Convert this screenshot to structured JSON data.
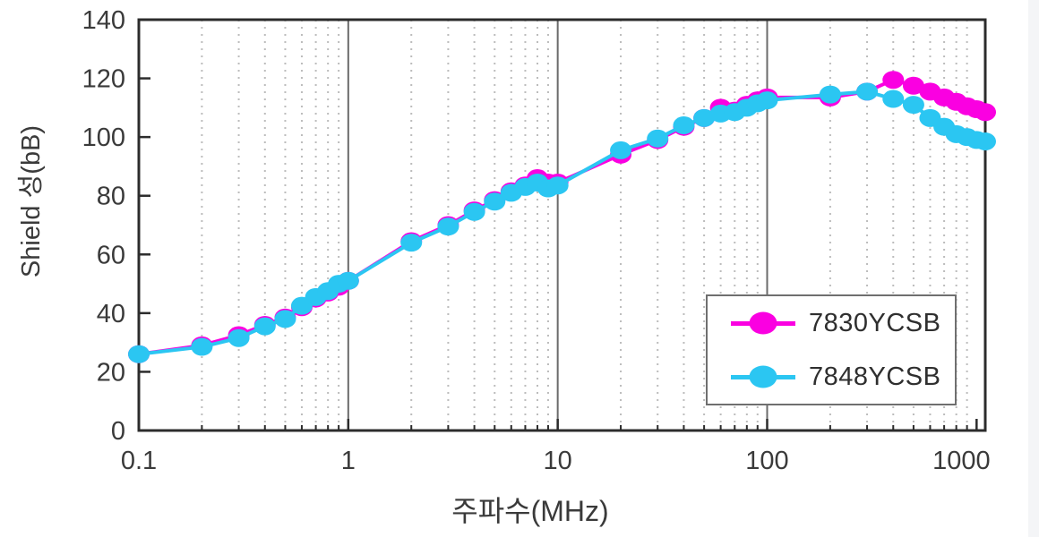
{
  "chart_data": {
    "type": "line",
    "title": "",
    "xlabel": "주파수(MHz)",
    "ylabel": "Shield 성(bB)",
    "x_scale": "log",
    "xlim": [
      0.1,
      1100
    ],
    "ylim": [
      0,
      140
    ],
    "x_ticks": [
      "0.1",
      "1",
      "10",
      "100",
      "1000"
    ],
    "x_tick_values": [
      0.1,
      1,
      10,
      100,
      1000
    ],
    "y_ticks": [
      0,
      20,
      40,
      60,
      80,
      100,
      120,
      140
    ],
    "grid": {
      "vertical_minor": "dotted",
      "vertical_major": "solid",
      "horizontal": "none"
    },
    "legend": {
      "position": "inside-bottom-right",
      "items": [
        "7830YCSB",
        "7848YCSB"
      ]
    },
    "x": [
      0.1,
      0.2,
      0.3,
      0.4,
      0.5,
      0.6,
      0.7,
      0.8,
      0.9,
      1,
      2,
      3,
      4,
      5,
      6,
      7,
      8,
      9,
      10,
      20,
      30,
      40,
      50,
      60,
      70,
      80,
      90,
      100,
      200,
      300,
      400,
      500,
      600,
      700,
      800,
      900,
      1000,
      1100
    ],
    "series": [
      {
        "name": "7830YCSB",
        "color": "#FA00E1",
        "marker": "ellipse",
        "values": [
          26,
          29,
          32.5,
          36,
          38.5,
          42,
          45,
          47,
          49,
          51,
          64.5,
          70,
          75,
          78.5,
          81.5,
          83.5,
          86,
          84.5,
          84.5,
          94,
          99,
          103.5,
          106.5,
          110,
          109,
          111,
          112.5,
          113.5,
          113.5,
          115.5,
          119.5,
          117.5,
          115.5,
          113.5,
          112,
          110.5,
          109.5,
          108.5
        ]
      },
      {
        "name": "7848YCSB",
        "color": "#2BC6F2",
        "marker": "ellipse",
        "values": [
          26,
          28.5,
          31.5,
          35.5,
          38,
          42.5,
          45.5,
          47.5,
          50,
          51,
          64,
          69.5,
          74.5,
          78,
          81,
          83,
          84.5,
          82.5,
          83.5,
          95.5,
          99.5,
          104,
          106.5,
          108,
          108.5,
          110,
          111.5,
          112.5,
          114.5,
          115.5,
          113,
          111,
          106.5,
          103.5,
          101,
          100,
          99,
          98.5
        ]
      }
    ],
    "plot_style": {
      "border_color": "#2c2c2c",
      "major_grid_color": "#6b6b6b",
      "minor_grid_color": "#bcbcbc",
      "tick_label_color": "#3a3a3a"
    }
  }
}
